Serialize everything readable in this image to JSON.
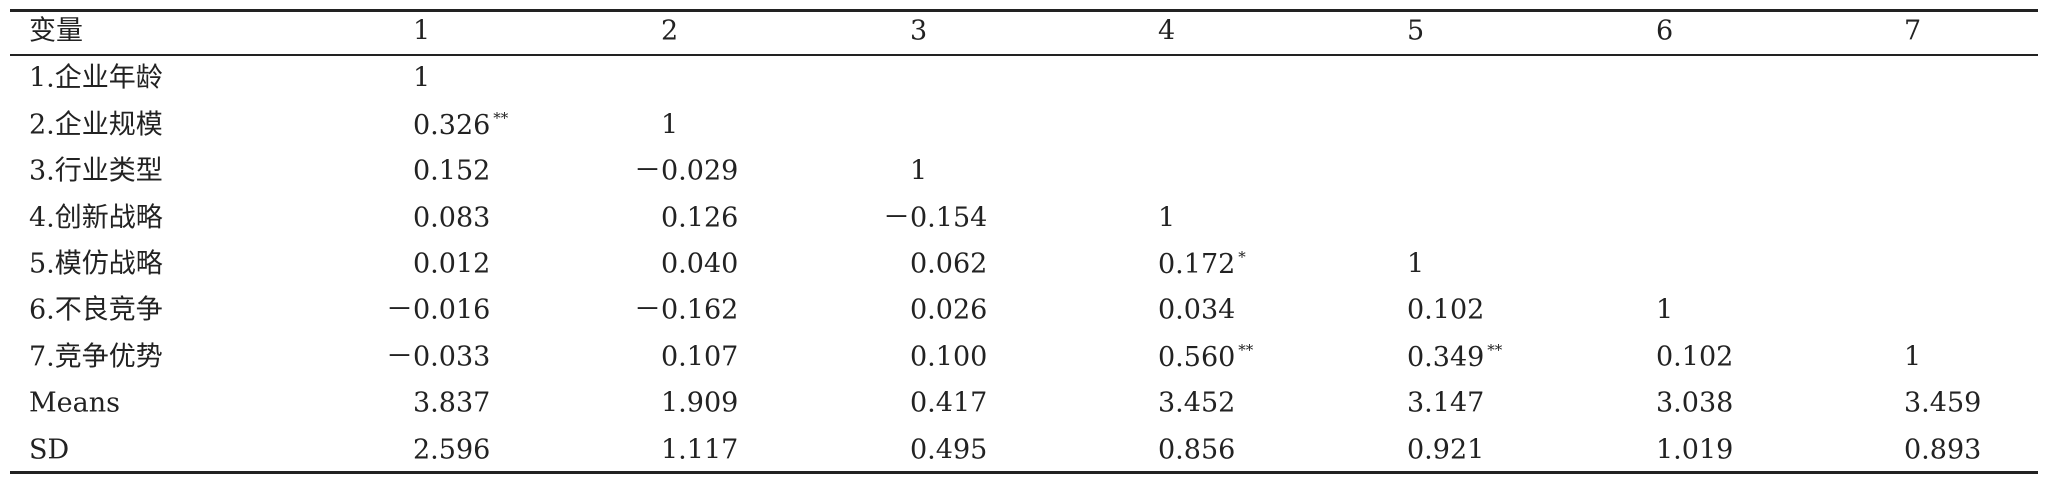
{
  "table": {
    "header": [
      "变量",
      "1",
      "2",
      "3",
      "4",
      "5",
      "6",
      "7"
    ],
    "rows": [
      [
        "1.企业年龄",
        "1"
      ],
      [
        "2.企业规模",
        {
          "text": "0.326",
          "sig": "**"
        },
        "1"
      ],
      [
        "3.行业类型",
        "0.152",
        "－0.029",
        "1"
      ],
      [
        "4.创新战略",
        "0.083",
        "0.126",
        "－0.154",
        "1"
      ],
      [
        "5.模仿战略",
        "0.012",
        "0.040",
        "0.062",
        {
          "text": "0.172",
          "sig": "*"
        },
        "1"
      ],
      [
        "6.不良竞争",
        "－0.016",
        "－0.162",
        "0.026",
        "0.034",
        "0.102",
        "1"
      ],
      [
        "7.竞争优势",
        "－0.033",
        "0.107",
        "0.100",
        {
          "text": "0.560",
          "sig": "**"
        },
        {
          "text": "0.349",
          "sig": "**"
        },
        "0.102",
        "1"
      ],
      [
        "Means",
        "3.837",
        "1.909",
        "0.417",
        "3.452",
        "3.147",
        "3.038",
        "3.459"
      ],
      [
        "SD",
        "2.596",
        "1.117",
        "0.495",
        "0.856",
        "0.921",
        "1.019",
        "0.893"
      ]
    ]
  }
}
